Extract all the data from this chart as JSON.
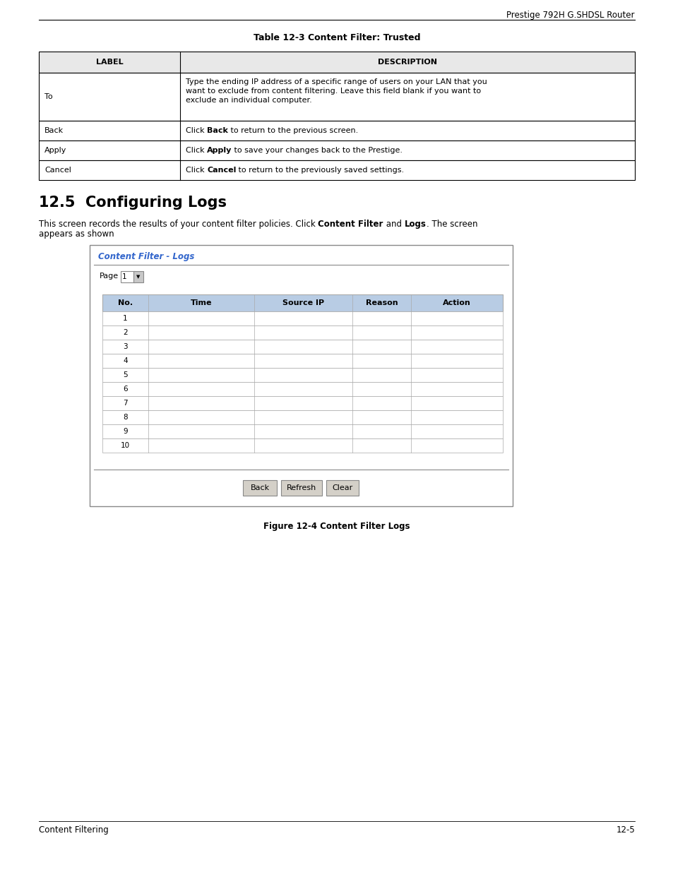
{
  "page_bg": "#ffffff",
  "header_text": "Prestige 792H G.SHDSL Router",
  "header_fontsize": 8.5,
  "table_title": "Table 12-3 Content Filter: Trusted",
  "table_title_fontsize": 9,
  "table_headers": [
    "LABEL",
    "DESCRIPTION"
  ],
  "table_header_fontsize": 8,
  "table_rows": [
    [
      "To",
      [
        "Type the ending IP address of a specific range of users on your LAN that you",
        "want to exclude from content filtering. Leave this field blank if you want to",
        "exclude an individual computer."
      ]
    ],
    [
      "Back",
      [
        "Click ",
        "Back",
        " to return to the previous screen."
      ]
    ],
    [
      "Apply",
      [
        "Click ",
        "Apply",
        " to save your changes back to the Prestige."
      ]
    ],
    [
      "Cancel",
      [
        "Click ",
        "Cancel",
        " to return to the previously saved settings."
      ]
    ]
  ],
  "section_title": "12.5  Configuring Logs",
  "section_title_fontsize": 15,
  "body_fontsize": 8.5,
  "screenshot_title_color": "#3366cc",
  "screenshot_title": "Content Filter - Logs",
  "screenshot_title_fontsize": 8.5,
  "inner_table_headers": [
    "No.",
    "Time",
    "Source IP",
    "Reason",
    "Action"
  ],
  "inner_table_header_bg": "#b8cce4",
  "inner_table_border_color": "#aaaaaa",
  "button_labels": [
    "Back",
    "Refresh",
    "Clear"
  ],
  "figure_caption": "Figure 12-4 Content Filter Logs",
  "figure_caption_fontsize": 8.5,
  "footer_left": "Content Filtering",
  "footer_right": "12-5",
  "footer_fontsize": 8.5
}
